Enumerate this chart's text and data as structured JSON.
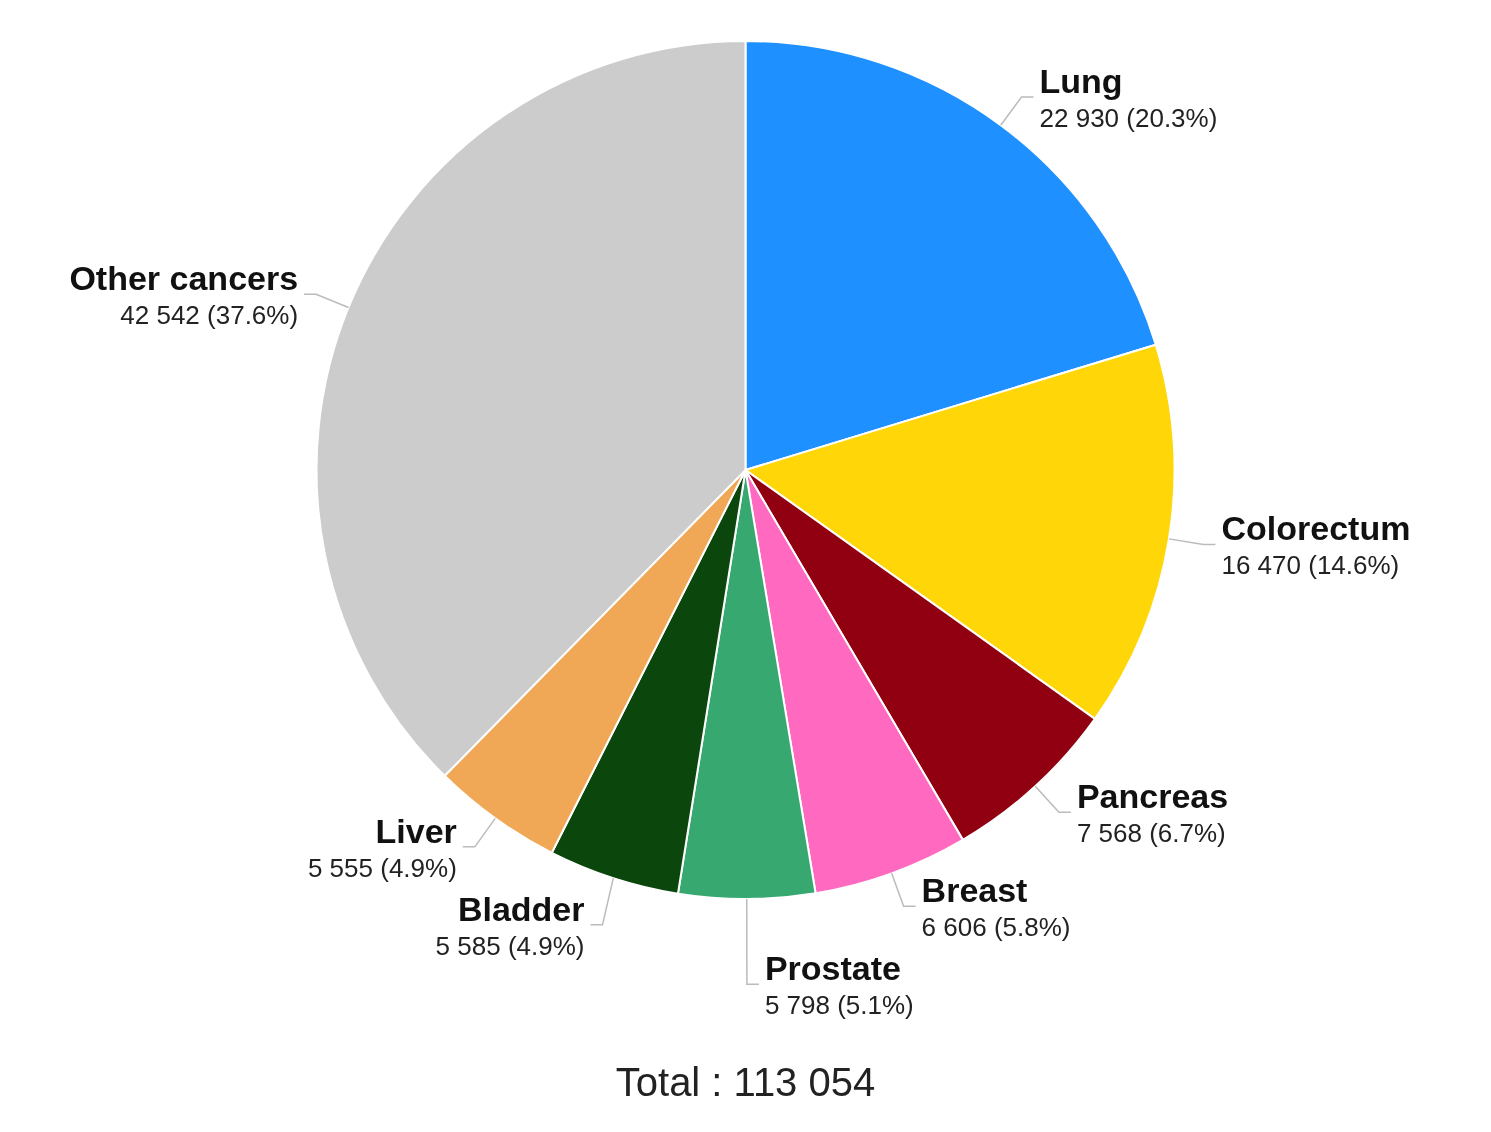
{
  "chart_data": {
    "type": "pie",
    "categories": [
      "Lung",
      "Colorectum",
      "Pancreas",
      "Breast",
      "Prostate",
      "Bladder",
      "Liver",
      "Other cancers"
    ],
    "values": [
      22930,
      16470,
      7568,
      6606,
      5798,
      5585,
      5555,
      42542
    ],
    "colors": [
      "#1e90ff",
      "#ffd708",
      "#910010",
      "#ff69bf",
      "#37a870",
      "#0b460c",
      "#f0a856",
      "#cccccc"
    ],
    "value_labels": [
      "22 930 (20.3%)",
      "16 470 (14.6%)",
      "7 568 (6.7%)",
      "6 606 (5.8%)",
      "5 798 (5.1%)",
      "5 585 (4.9%)",
      "5 555 (4.9%)",
      "42 542 (37.6%)"
    ],
    "annotations": [
      "Total : 113 054"
    ]
  }
}
